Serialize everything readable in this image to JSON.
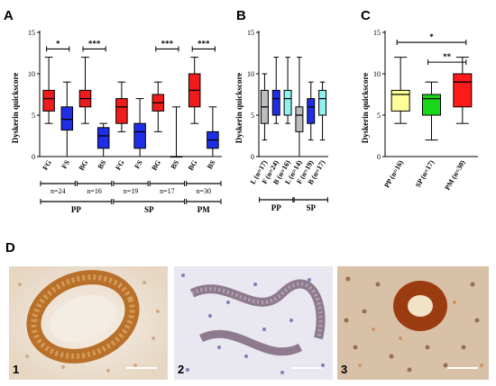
{
  "panel_letters": {
    "a": "A",
    "b": "B",
    "c": "C",
    "d": "D"
  },
  "ylabel": "Dyskerin quickscore",
  "colors": {
    "red": "#ee1c1c",
    "blue": "#1f2ee6",
    "gray": "#bdbdbd",
    "cyan": "#8ff2ef",
    "yellow": "#ffff99",
    "green": "#19d619",
    "box_red": "#ff1a1a"
  },
  "chart_data": [
    {
      "id": "A",
      "type": "box",
      "ylim": [
        0,
        15
      ],
      "yticks": [
        0,
        5,
        10,
        15
      ],
      "boxes": [
        {
          "label": "FG",
          "color": "red",
          "min": 4,
          "q1": 5.5,
          "median": 7,
          "q3": 8,
          "max": 12
        },
        {
          "label": "FS",
          "color": "blue",
          "min": 0,
          "q1": 3.2,
          "median": 4.5,
          "q3": 6,
          "max": 9
        },
        {
          "label": "BG",
          "color": "red",
          "min": 4,
          "q1": 6,
          "median": 7,
          "q3": 8,
          "max": 12
        },
        {
          "label": "BS",
          "color": "blue",
          "min": 0,
          "q1": 1,
          "median": 2.5,
          "q3": 3.5,
          "max": 4
        },
        {
          "label": "FG",
          "color": "red",
          "min": 3,
          "q1": 4,
          "median": 6,
          "q3": 7,
          "max": 9
        },
        {
          "label": "FS",
          "color": "blue",
          "min": 0,
          "q1": 1,
          "median": 3,
          "q3": 4,
          "max": 7
        },
        {
          "label": "BG",
          "color": "red",
          "min": 3,
          "q1": 5.5,
          "median": 6.5,
          "q3": 7.5,
          "max": 9
        },
        {
          "label": "BS",
          "color": "blue",
          "min": 0,
          "q1": 0,
          "median": 0,
          "q3": 0,
          "max": 6
        },
        {
          "label": "BG",
          "color": "red",
          "min": 4,
          "q1": 6,
          "median": 8,
          "q3": 10,
          "max": 12
        },
        {
          "label": "BS",
          "color": "blue",
          "min": 0,
          "q1": 1,
          "median": 2,
          "q3": 3,
          "max": 6
        }
      ],
      "significance": [
        {
          "from": 0,
          "to": 1,
          "label": "*",
          "y": 13
        },
        {
          "from": 2,
          "to": 3,
          "label": "***",
          "y": 13
        },
        {
          "from": 6,
          "to": 7,
          "label": "***",
          "y": 13
        },
        {
          "from": 8,
          "to": 9,
          "label": "***",
          "y": 13
        }
      ],
      "n_groups": [
        {
          "from": 0,
          "to": 1,
          "label": "n=24"
        },
        {
          "from": 2,
          "to": 3,
          "label": "n=16"
        },
        {
          "from": 4,
          "to": 5,
          "label": "n=19"
        },
        {
          "from": 6,
          "to": 7,
          "label": "n=17"
        },
        {
          "from": 8,
          "to": 9,
          "label": "n=30"
        }
      ],
      "phase_groups": [
        {
          "from": 0,
          "to": 3,
          "label": "PP"
        },
        {
          "from": 4,
          "to": 7,
          "label": "SP"
        },
        {
          "from": 8,
          "to": 9,
          "label": "PM"
        }
      ]
    },
    {
      "id": "B",
      "type": "box",
      "ylim": [
        0,
        15
      ],
      "yticks": [
        0,
        5,
        10,
        15
      ],
      "boxes": [
        {
          "label": "L (n=17)",
          "color": "gray",
          "min": 2,
          "q1": 4,
          "median": 6,
          "q3": 8,
          "max": 10
        },
        {
          "label": "F (n=24)",
          "color": "blue",
          "min": 4,
          "q1": 5,
          "median": 7,
          "q3": 8,
          "max": 12
        },
        {
          "label": "B (n=16)",
          "color": "cyan",
          "min": 4,
          "q1": 5,
          "median": 7,
          "q3": 8,
          "max": 12
        },
        {
          "label": "L (n=14)",
          "color": "gray",
          "min": 0,
          "q1": 3,
          "median": 5,
          "q3": 6,
          "max": 12
        },
        {
          "label": "F (n=19)",
          "color": "blue",
          "min": 2,
          "q1": 4,
          "median": 6,
          "q3": 7,
          "max": 9
        },
        {
          "label": "B (n=17)",
          "color": "cyan",
          "min": 2,
          "q1": 5,
          "median": 7,
          "q3": 8,
          "max": 9
        }
      ],
      "phase_groups": [
        {
          "from": 0,
          "to": 2,
          "label": "PP"
        },
        {
          "from": 3,
          "to": 5,
          "label": "SP"
        }
      ]
    },
    {
      "id": "C",
      "type": "box",
      "ylim": [
        0,
        15
      ],
      "yticks": [
        0,
        5,
        10,
        15
      ],
      "boxes": [
        {
          "label": "PP (n=16)",
          "color": "yellow",
          "min": 4,
          "q1": 5.5,
          "median": 7.5,
          "q3": 8,
          "max": 12
        },
        {
          "label": "SP (n=17)",
          "color": "green",
          "min": 2,
          "q1": 5,
          "median": 7,
          "q3": 7.5,
          "max": 9
        },
        {
          "label": "PM (n=30)",
          "color": "box_red",
          "min": 4,
          "q1": 6,
          "median": 9,
          "q3": 10,
          "max": 12
        }
      ],
      "significance": [
        {
          "from": 0,
          "to": 2,
          "label": "*",
          "y": 13.8
        },
        {
          "from": 1,
          "to": 2,
          "label": "**",
          "y": 11.4
        }
      ]
    }
  ],
  "micrographs": [
    {
      "number": "1"
    },
    {
      "number": "2"
    },
    {
      "number": "3"
    }
  ]
}
